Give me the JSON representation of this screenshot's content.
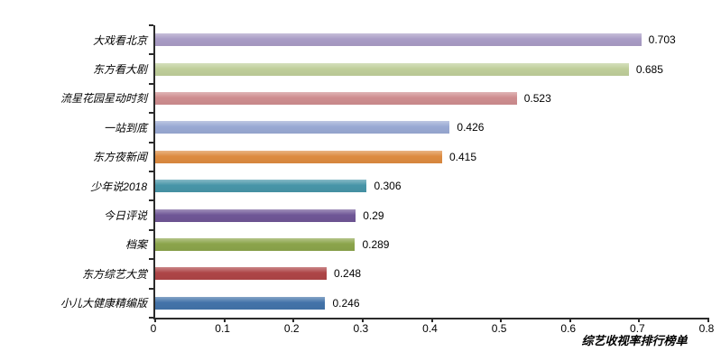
{
  "chart_data": {
    "type": "bar",
    "orientation": "horizontal",
    "title": "综艺收视率排行榜单",
    "xlabel": "综艺收视率排行榜单",
    "categories": [
      "大戏看北京",
      "东方看大剧",
      "流星花园星动时刻",
      "一站到底",
      "东方夜新闻",
      "少年说2018",
      "今日评说",
      "档案",
      "东方综艺大赏",
      "小儿大健康精编版"
    ],
    "values": [
      0.703,
      0.685,
      0.523,
      0.426,
      0.415,
      0.306,
      0.29,
      0.289,
      0.248,
      0.246
    ],
    "value_labels": [
      "0.703",
      "0.685",
      "0.523",
      "0.426",
      "0.415",
      "0.306",
      "0.29",
      "0.289",
      "0.248",
      "0.246"
    ],
    "bar_colors": [
      "#A99CC5",
      "#BFCE9A",
      "#CE8D8F",
      "#99A9D3",
      "#DD8B40",
      "#4795A8",
      "#6F5696",
      "#8BA44B",
      "#AE4547",
      "#4373A9"
    ],
    "x_ticks": [
      "0",
      "0.1",
      "0.2",
      "0.3",
      "0.4",
      "0.5",
      "0.6",
      "0.7",
      "0.8"
    ],
    "xlim": [
      0,
      0.8
    ],
    "grid": false,
    "legend": "none",
    "value_label_position": "outside-end",
    "axis_color": "#2b2b2b",
    "background": "#ffffff"
  }
}
